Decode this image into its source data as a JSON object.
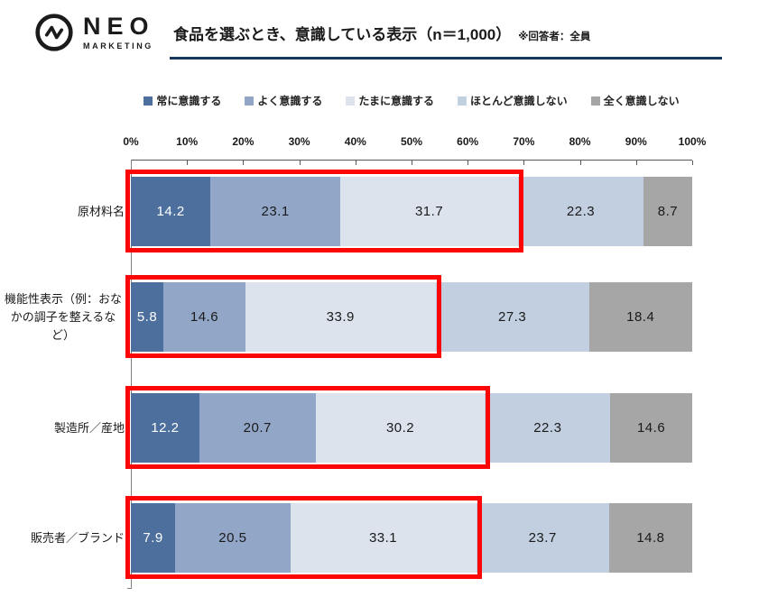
{
  "header": {
    "logo_name": "NEO",
    "logo_sub": "MARKETING",
    "title": "食品を選ぶとき、意識している表示（n＝1,000）",
    "note": "※回答者：全員"
  },
  "colors": {
    "title_rule": "#17375e",
    "highlight_red": "#fb0505",
    "value_text_on_dark": "#ffffff",
    "value_text_on_light": "#1a1a1a"
  },
  "chart_data": {
    "type": "bar",
    "orientation": "horizontal",
    "stacked": true,
    "xlim": [
      0,
      100
    ],
    "x_ticks": [
      "0%",
      "10%",
      "20%",
      "30%",
      "40%",
      "50%",
      "60%",
      "70%",
      "80%",
      "90%",
      "100%"
    ],
    "grid": false,
    "legend_position": "top",
    "categories": [
      "原材料名",
      "機能性表示（例：おなかの調子を整えるなど）",
      "製造所／産地",
      "販売者／ブランド"
    ],
    "series": [
      {
        "name": "常に意識する",
        "color": "#4d6f9e",
        "values": [
          14.2,
          5.8,
          12.2,
          7.9
        ]
      },
      {
        "name": "よく意識する",
        "color": "#92a6c7",
        "values": [
          23.1,
          14.6,
          20.7,
          20.5
        ]
      },
      {
        "name": "たまに意識する",
        "color": "#dce3ec",
        "values": [
          31.7,
          33.9,
          30.2,
          33.1
        ]
      },
      {
        "name": "ほとんど意識しない",
        "color": "#c2cfe0",
        "values": [
          22.3,
          27.3,
          22.3,
          23.7
        ]
      },
      {
        "name": "全く意識しない",
        "color": "#a6a6a6",
        "values": [
          8.7,
          18.4,
          14.6,
          14.8
        ]
      }
    ],
    "annotations": [
      "red box highlights the first three segments (常に＋よく＋たまに) of each bar"
    ]
  }
}
